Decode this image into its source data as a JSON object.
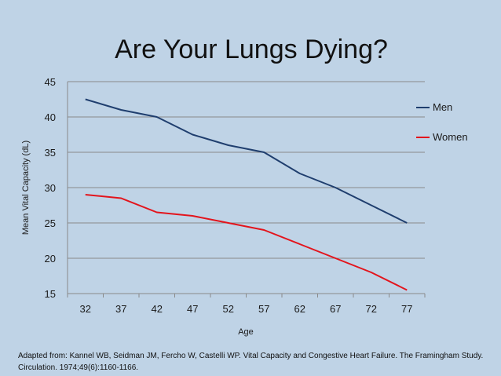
{
  "chart_data": {
    "type": "line",
    "title": "Are Your Lungs Dying?",
    "xlabel": "Age",
    "ylabel": "Mean Vital Capacity (dL)",
    "categories": [
      "32",
      "37",
      "42",
      "47",
      "52",
      "57",
      "62",
      "67",
      "72",
      "77"
    ],
    "ylim": [
      15,
      45
    ],
    "yticks": [
      "15",
      "20",
      "25",
      "30",
      "35",
      "40",
      "45"
    ],
    "grid": true,
    "legend_position": "right",
    "series": [
      {
        "name": "Men",
        "color": "#1f3e6e",
        "values": [
          42.5,
          41,
          40,
          37.5,
          36,
          35,
          32,
          30,
          27.5,
          25
        ]
      },
      {
        "name": "Women",
        "color": "#e3141c",
        "values": [
          29,
          28.5,
          26.5,
          26,
          25,
          24,
          22,
          20,
          18,
          15.5
        ]
      }
    ]
  },
  "footer": {
    "citation": "Adapted from:  Kannel WB, Seidman JM, Fercho W, Castelli WP.  Vital Capacity and Congestive Heart Failure.  The Framingham Study. Circulation. 1974;49(6):1160-1166."
  }
}
